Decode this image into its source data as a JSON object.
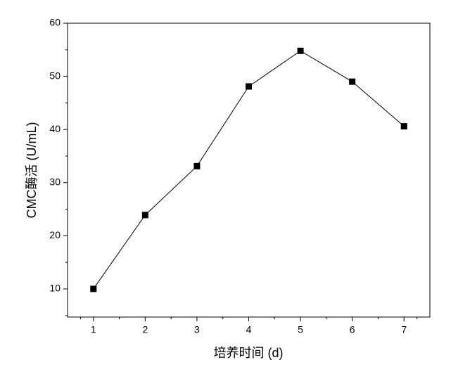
{
  "chart_data": {
    "type": "line",
    "x_label": "培养时间 (d)",
    "y_label": "CMC酶活 (U/mL)",
    "x": [
      1,
      2,
      3,
      4,
      5,
      6,
      7
    ],
    "series": [
      {
        "name": "CMC",
        "color": "#000000",
        "values": [
          10.0,
          23.9,
          33.1,
          48.1,
          54.8,
          49.0,
          40.6
        ]
      }
    ],
    "xlim": [
      0.5,
      7.5
    ],
    "xticks": [
      1,
      2,
      3,
      4,
      5,
      6,
      7
    ],
    "ylim": [
      4.7,
      60
    ],
    "yticks": [
      10,
      20,
      30,
      40,
      50,
      60
    ],
    "grid": false,
    "marker": "square"
  }
}
